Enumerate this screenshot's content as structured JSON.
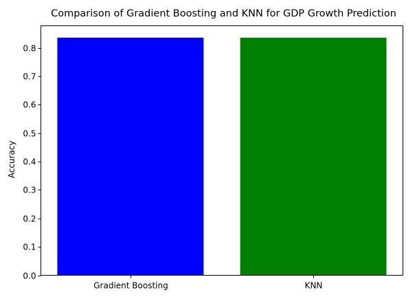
{
  "chart_data": {
    "type": "bar",
    "title": "Comparison of Gradient Boosting and KNN for GDP Growth Prediction",
    "xlabel": "",
    "ylabel": "Accuracy",
    "categories": [
      "Gradient Boosting",
      "KNN"
    ],
    "values": [
      0.836,
      0.836
    ],
    "colors": [
      "#0000ff",
      "#008000"
    ],
    "ylim": [
      0,
      0.8778
    ],
    "yticks": [
      0.0,
      0.1,
      0.2,
      0.3,
      0.4,
      0.5,
      0.6,
      0.7,
      0.8
    ],
    "ytick_labels": [
      "0.0",
      "0.1",
      "0.2",
      "0.3",
      "0.4",
      "0.5",
      "0.6",
      "0.7",
      "0.8"
    ],
    "grid": false,
    "legend": "none"
  }
}
